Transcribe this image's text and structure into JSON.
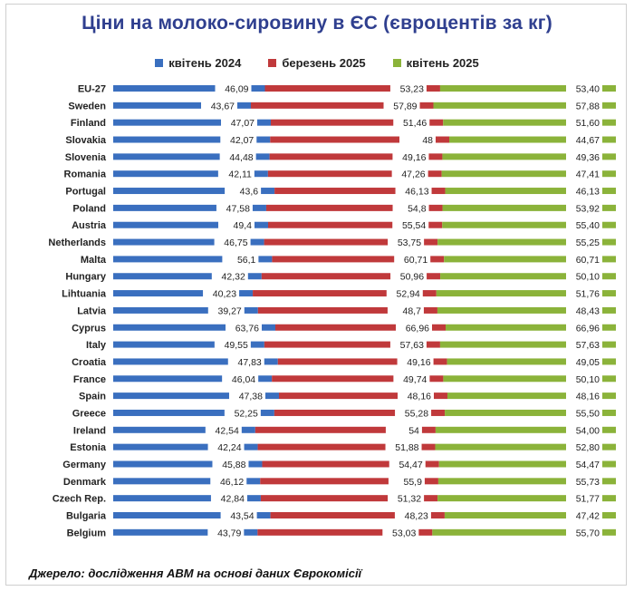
{
  "chart_data": {
    "type": "bar",
    "stacked": true,
    "orientation": "horizontal",
    "title": "Ціни на молоко-сировину в ЄС (євроцентів за кг)",
    "categories": [
      "EU-27",
      "Sweden",
      "Finland",
      "Slovakia",
      "Slovenia",
      "Romania",
      "Portugal",
      "Poland",
      "Austria",
      "Netherlands",
      "Malta",
      "Hungary",
      "Lihtuania",
      "Latvia",
      "Cyprus",
      "Italy",
      "Croatia",
      "France",
      "Spain",
      "Greece",
      "Ireland",
      "Estonia",
      "Germany",
      "Denmark",
      "Czech Rep.",
      "Bulgaria",
      "Belgium"
    ],
    "series": [
      {
        "name": "квітень 2024",
        "color": "#3a6fbf",
        "values": [
          46.09,
          43.67,
          47.07,
          42.07,
          44.48,
          42.11,
          43.6,
          47.58,
          49.4,
          46.75,
          56.1,
          42.32,
          40.23,
          39.27,
          63.76,
          49.55,
          47.83,
          46.04,
          47.38,
          52.25,
          42.54,
          42.24,
          45.88,
          46.12,
          42.84,
          43.54,
          43.79
        ],
        "labels": [
          "46,09",
          "43,67",
          "47,07",
          "42,07",
          "44,48",
          "42,11",
          "43,6",
          "47,58",
          "49,4",
          "46,75",
          "56,1",
          "42,32",
          "40,23",
          "39,27",
          "63,76",
          "49,55",
          "47,83",
          "46,04",
          "47,38",
          "52,25",
          "42,54",
          "42,24",
          "45,88",
          "46,12",
          "42,84",
          "43,54",
          "43,79"
        ]
      },
      {
        "name": "березень 2025",
        "color": "#c0393b",
        "values": [
          53.23,
          57.89,
          51.46,
          48,
          49.16,
          47.26,
          46.13,
          54.8,
          55.54,
          53.75,
          60.71,
          50.96,
          52.94,
          48.7,
          66.96,
          57.63,
          49.16,
          49.74,
          48.16,
          55.28,
          54,
          51.88,
          54.47,
          55.9,
          51.32,
          48.23,
          53.03
        ],
        "labels": [
          "53,23",
          "57,89",
          "51,46",
          "48",
          "49,16",
          "47,26",
          "46,13",
          "54,8",
          "55,54",
          "53,75",
          "60,71",
          "50,96",
          "52,94",
          "48,7",
          "66,96",
          "57,63",
          "49,16",
          "49,74",
          "48,16",
          "55,28",
          "54",
          "51,88",
          "54,47",
          "55,9",
          "51,32",
          "48,23",
          "53,03"
        ]
      },
      {
        "name": "квітень 2025",
        "color": "#8bb33a",
        "values": [
          53.4,
          57.88,
          51.6,
          44.67,
          49.36,
          47.41,
          46.13,
          53.92,
          55.4,
          55.25,
          60.71,
          50.1,
          51.76,
          48.43,
          66.96,
          57.63,
          49.05,
          50.1,
          48.16,
          55.5,
          54.0,
          52.8,
          54.47,
          55.73,
          51.77,
          47.42,
          55.7
        ],
        "labels": [
          "53,40",
          "57,88",
          "51,60",
          "44,67",
          "49,36",
          "47,41",
          "46,13",
          "53,92",
          "55,40",
          "55,25",
          "60,71",
          "50,10",
          "51,76",
          "48,43",
          "66,96",
          "57,63",
          "49,05",
          "50,10",
          "48,16",
          "55,50",
          "54,00",
          "52,80",
          "54,47",
          "55,73",
          "51,77",
          "47,42",
          "55,70"
        ]
      }
    ],
    "legend_position": "top-center",
    "grid": false
  },
  "source": "Джерело: дослідження АВМ на основі даних Єврокомісії"
}
